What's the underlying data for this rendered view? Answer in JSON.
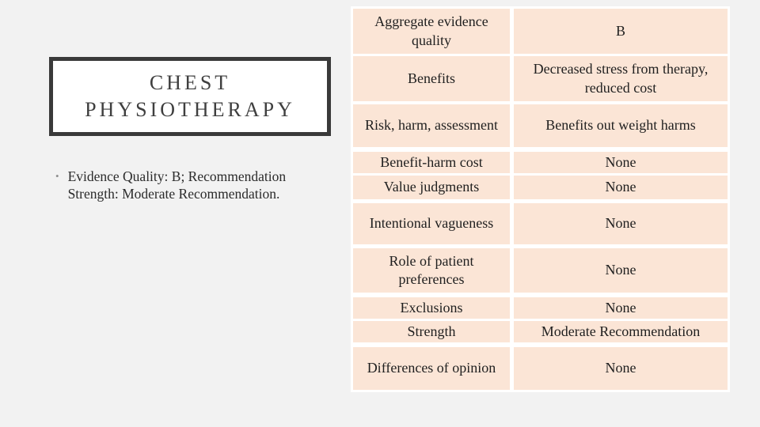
{
  "slide": {
    "title": "CHEST PHYSIOTHERAPY",
    "bullet": {
      "marker": "•",
      "text": "Evidence Quality: B; Recommendation Strength: Moderate Recommendation."
    },
    "table": {
      "rows": [
        {
          "label": "Aggregate evidence quality",
          "value": "B"
        },
        {
          "label": "Benefits",
          "value": "Decreased stress from therapy, reduced cost"
        },
        {
          "label": "Risk, harm, assessment",
          "value": "Benefits out weight harms"
        },
        {
          "label": "Benefit-harm cost",
          "value": "None"
        },
        {
          "label": "Value judgments",
          "value": "None"
        },
        {
          "label": "Intentional vagueness",
          "value": "None"
        },
        {
          "label": "Role of patient preferences",
          "value": "None"
        },
        {
          "label": "Exclusions",
          "value": "None"
        },
        {
          "label": "Strength",
          "value": "Moderate Recommendation"
        },
        {
          "label": "Differences of opinion",
          "value": "None"
        }
      ]
    },
    "colors": {
      "slide_background": "#f2f2f2",
      "cell_background": "#fbe5d6",
      "gridline": "#ffffff",
      "title_border": "#3a3a3a",
      "title_text": "#3f3f3f",
      "body_text": "#1f1f1f"
    }
  }
}
